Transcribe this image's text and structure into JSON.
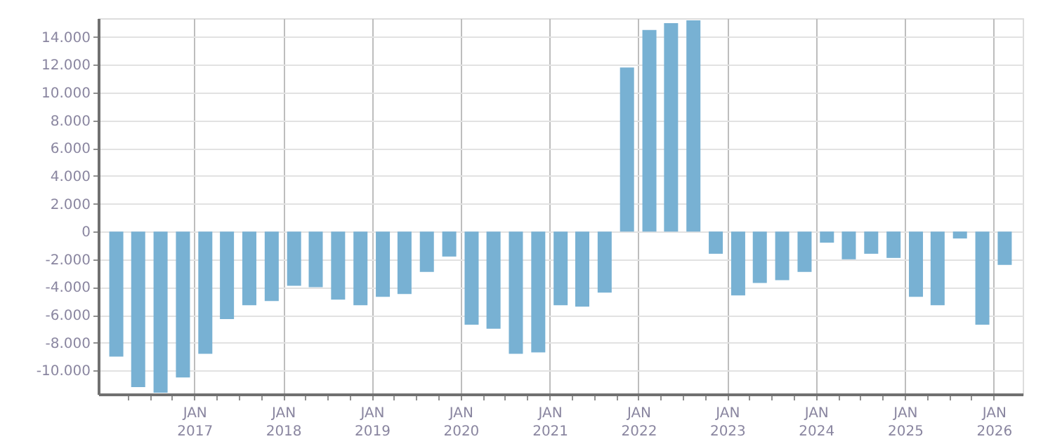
{
  "chart_data": {
    "type": "bar",
    "x": [
      "2016-02-15",
      "2016-05-15",
      "2016-08-15",
      "2016-11-15",
      "2017-02-15",
      "2017-05-15",
      "2017-08-15",
      "2017-11-15",
      "2018-02-15",
      "2018-05-15",
      "2018-08-15",
      "2018-11-15",
      "2019-02-15",
      "2019-05-15",
      "2019-08-15",
      "2019-11-15",
      "2020-02-15",
      "2020-05-15",
      "2020-08-15",
      "2020-11-15",
      "2021-02-15",
      "2021-05-15",
      "2021-08-15",
      "2021-11-15",
      "2022-02-15",
      "2022-05-15",
      "2022-08-15",
      "2022-11-15",
      "2023-02-15",
      "2023-05-15",
      "2023-08-15",
      "2023-11-15",
      "2024-02-15",
      "2024-05-15",
      "2024-08-15",
      "2024-11-15",
      "2025-02-15",
      "2025-05-15",
      "2025-08-15",
      "2025-11-15",
      "2026-02-15"
    ],
    "values": [
      -9000,
      -11200,
      -11600,
      -10500,
      -8800,
      -6300,
      -5300,
      -5000,
      -3900,
      -4000,
      -4900,
      -5300,
      -4700,
      -4500,
      -2900,
      -1800,
      -6700,
      -7000,
      -8800,
      -8700,
      -5300,
      -5400,
      -4400,
      11800,
      14500,
      15000,
      15200,
      -1600,
      -4600,
      -3700,
      -3500,
      -2900,
      -800,
      -2000,
      -1600,
      -1900,
      -4700,
      -5300,
      -500,
      -6700,
      -2400
    ],
    "color": "#78b1d3",
    "xlim": [
      "2016-01-01",
      "2026-04-01"
    ],
    "xticks": [
      {
        "value": "2016-04-01",
        "label": null
      },
      {
        "value": "2016-07-01",
        "label": null
      },
      {
        "value": "2016-10-01",
        "label": null
      },
      {
        "value": "2017-01-01",
        "label": "JAN 2017"
      },
      {
        "value": "2017-04-01",
        "label": null
      },
      {
        "value": "2017-07-01",
        "label": null
      },
      {
        "value": "2017-10-01",
        "label": null
      },
      {
        "value": "2018-01-01",
        "label": "JAN 2018"
      },
      {
        "value": "2018-04-01",
        "label": null
      },
      {
        "value": "2018-07-01",
        "label": null
      },
      {
        "value": "2018-10-01",
        "label": null
      },
      {
        "value": "2019-01-01",
        "label": "JAN 2019"
      },
      {
        "value": "2019-04-01",
        "label": null
      },
      {
        "value": "2019-07-01",
        "label": null
      },
      {
        "value": "2019-10-01",
        "label": null
      },
      {
        "value": "2020-01-01",
        "label": "JAN 2020"
      },
      {
        "value": "2020-04-01",
        "label": null
      },
      {
        "value": "2020-07-01",
        "label": null
      },
      {
        "value": "2020-10-01",
        "label": null
      },
      {
        "value": "2021-01-01",
        "label": "JAN 2021"
      },
      {
        "value": "2021-04-01",
        "label": null
      },
      {
        "value": "2021-07-01",
        "label": null
      },
      {
        "value": "2021-10-01",
        "label": null
      },
      {
        "value": "2022-01-01",
        "label": "JAN 2022"
      },
      {
        "value": "2022-04-01",
        "label": null
      },
      {
        "value": "2022-07-01",
        "label": null
      },
      {
        "value": "2022-10-01",
        "label": null
      },
      {
        "value": "2023-01-01",
        "label": "JAN 2023"
      },
      {
        "value": "2023-04-01",
        "label": null
      },
      {
        "value": "2023-07-01",
        "label": null
      },
      {
        "value": "2023-10-01",
        "label": null
      },
      {
        "value": "2024-01-01",
        "label": "JAN 2024"
      },
      {
        "value": "2024-04-01",
        "label": null
      },
      {
        "value": "2024-07-01",
        "label": null
      },
      {
        "value": "2024-10-01",
        "label": null
      },
      {
        "value": "2025-01-01",
        "label": "JAN 2025"
      },
      {
        "value": "2025-04-01",
        "label": null
      },
      {
        "value": "2025-07-01",
        "label": null
      },
      {
        "value": "2025-10-01",
        "label": null
      },
      {
        "value": "2026-01-01",
        "label": "JAN 2026"
      }
    ],
    "ylim": [
      -11700,
      15350
    ],
    "yticks": [
      {
        "value": -10000,
        "label": "-10.000"
      },
      {
        "value": -8000,
        "label": "-8.000"
      },
      {
        "value": -6000,
        "label": "-6.000"
      },
      {
        "value": -4000,
        "label": "-4.000"
      },
      {
        "value": -2000,
        "label": "-2.000"
      },
      0,
      {
        "value": 2000,
        "label": "2.000"
      },
      {
        "value": 4000,
        "label": "4.000"
      },
      {
        "value": 6000,
        "label": "6.000"
      },
      {
        "value": 8000,
        "label": "8.000"
      },
      {
        "value": 10000,
        "label": "10.000"
      },
      {
        "value": 12000,
        "label": "12.000"
      },
      {
        "value": 14000,
        "label": "14.000"
      }
    ],
    "grid": true
  }
}
